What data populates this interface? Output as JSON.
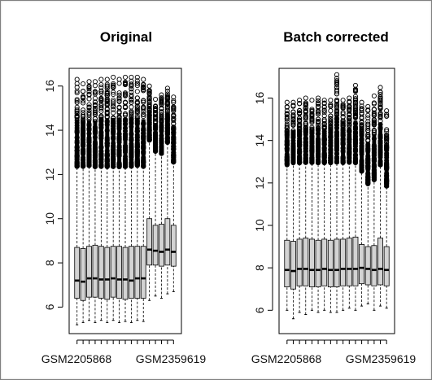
{
  "chart_data": [
    {
      "type": "box",
      "title": "Original",
      "ylim": [
        4.8,
        16.8
      ],
      "yticks": [
        6,
        8,
        10,
        12,
        14,
        16
      ],
      "category_labels": [
        "GSM2205868",
        "GSM2359619"
      ],
      "outlier_style": "open-circle",
      "box_color": "#d3d3d3",
      "groups": [
        {
          "q1": 6.4,
          "median": 7.2,
          "q3": 8.7,
          "whisker_low": 5.2,
          "whisker_high": 12.3,
          "outlier_max": 16.3
        },
        {
          "q1": 6.3,
          "median": 7.15,
          "q3": 8.65,
          "whisker_low": 5.3,
          "whisker_high": 12.3,
          "outlier_max": 16.1
        },
        {
          "q1": 6.45,
          "median": 7.3,
          "q3": 8.75,
          "whisker_low": 5.4,
          "whisker_high": 12.35,
          "outlier_max": 16.2
        },
        {
          "q1": 6.45,
          "median": 7.3,
          "q3": 8.8,
          "whisker_low": 5.3,
          "whisker_high": 12.3,
          "outlier_max": 16.2
        },
        {
          "q1": 6.4,
          "median": 7.25,
          "q3": 8.75,
          "whisker_low": 5.4,
          "whisker_high": 12.3,
          "outlier_max": 16.3
        },
        {
          "q1": 6.35,
          "median": 7.25,
          "q3": 8.7,
          "whisker_low": 5.3,
          "whisker_high": 12.3,
          "outlier_max": 16.3
        },
        {
          "q1": 6.45,
          "median": 7.3,
          "q3": 8.75,
          "whisker_low": 5.4,
          "whisker_high": 12.3,
          "outlier_max": 16.4
        },
        {
          "q1": 6.4,
          "median": 7.25,
          "q3": 8.75,
          "whisker_low": 5.3,
          "whisker_high": 12.3,
          "outlier_max": 16.3
        },
        {
          "q1": 6.35,
          "median": 7.25,
          "q3": 8.7,
          "whisker_low": 5.35,
          "whisker_high": 12.3,
          "outlier_max": 16.4
        },
        {
          "q1": 6.4,
          "median": 7.2,
          "q3": 8.75,
          "whisker_low": 5.3,
          "whisker_high": 12.3,
          "outlier_max": 16.4
        },
        {
          "q1": 6.4,
          "median": 7.3,
          "q3": 8.75,
          "whisker_low": 5.4,
          "whisker_high": 12.35,
          "outlier_max": 16.4
        },
        {
          "q1": 6.4,
          "median": 7.3,
          "q3": 8.75,
          "whisker_low": 5.35,
          "whisker_high": 12.3,
          "outlier_max": 16.3
        },
        {
          "q1": 7.9,
          "median": 8.6,
          "q3": 10.0,
          "whisker_low": 6.3,
          "whisker_high": 13.5,
          "outlier_max": 16.0
        },
        {
          "q1": 7.9,
          "median": 8.55,
          "q3": 9.7,
          "whisker_low": 6.5,
          "whisker_high": 13.0,
          "outlier_max": 15.4
        },
        {
          "q1": 7.85,
          "median": 8.5,
          "q3": 9.75,
          "whisker_low": 6.4,
          "whisker_high": 12.9,
          "outlier_max": 15.6
        },
        {
          "q1": 7.9,
          "median": 8.6,
          "q3": 10.0,
          "whisker_low": 6.6,
          "whisker_high": 13.4,
          "outlier_max": 15.9
        },
        {
          "q1": 7.85,
          "median": 8.5,
          "q3": 9.7,
          "whisker_low": 6.7,
          "whisker_high": 12.5,
          "outlier_max": 15.5
        }
      ]
    },
    {
      "type": "box",
      "title": "Batch corrected",
      "ylim": [
        4.9,
        17.4
      ],
      "yticks": [
        6,
        8,
        10,
        12,
        14,
        16
      ],
      "category_labels": [
        "GSM2205868",
        "GSM2359619"
      ],
      "outlier_style": "open-circle",
      "box_color": "#d3d3d3",
      "groups": [
        {
          "q1": 7.1,
          "median": 7.9,
          "q3": 9.3,
          "whisker_low": 6.0,
          "whisker_high": 12.8,
          "outlier_max": 15.8
        },
        {
          "q1": 7.0,
          "median": 7.85,
          "q3": 9.25,
          "whisker_low": 5.6,
          "whisker_high": 12.9,
          "outlier_max": 15.8
        },
        {
          "q1": 7.15,
          "median": 7.95,
          "q3": 9.35,
          "whisker_low": 5.9,
          "whisker_high": 12.9,
          "outlier_max": 15.9
        },
        {
          "q1": 7.15,
          "median": 7.95,
          "q3": 9.4,
          "whisker_low": 5.8,
          "whisker_high": 12.9,
          "outlier_max": 16.0
        },
        {
          "q1": 7.1,
          "median": 7.9,
          "q3": 9.35,
          "whisker_low": 6.0,
          "whisker_high": 12.9,
          "outlier_max": 15.9
        },
        {
          "q1": 7.1,
          "median": 7.9,
          "q3": 9.3,
          "whisker_low": 5.9,
          "whisker_high": 12.9,
          "outlier_max": 16.0
        },
        {
          "q1": 7.15,
          "median": 7.95,
          "q3": 9.35,
          "whisker_low": 6.0,
          "whisker_high": 12.9,
          "outlier_max": 15.9
        },
        {
          "q1": 7.1,
          "median": 7.9,
          "q3": 9.3,
          "whisker_low": 5.9,
          "whisker_high": 12.9,
          "outlier_max": 15.9
        },
        {
          "q1": 7.1,
          "median": 7.9,
          "q3": 9.35,
          "whisker_low": 5.9,
          "whisker_high": 12.9,
          "outlier_max": 17.1
        },
        {
          "q1": 7.15,
          "median": 7.95,
          "q3": 9.35,
          "whisker_low": 6.0,
          "whisker_high": 12.9,
          "outlier_max": 15.9
        },
        {
          "q1": 7.15,
          "median": 7.95,
          "q3": 9.4,
          "whisker_low": 6.1,
          "whisker_high": 12.9,
          "outlier_max": 16.0
        },
        {
          "q1": 7.15,
          "median": 7.95,
          "q3": 9.45,
          "whisker_low": 6.0,
          "whisker_high": 12.9,
          "outlier_max": 16.6
        },
        {
          "q1": 7.25,
          "median": 8.0,
          "q3": 9.1,
          "whisker_low": 6.2,
          "whisker_high": 12.5,
          "outlier_max": 15.8
        },
        {
          "q1": 7.2,
          "median": 7.95,
          "q3": 9.0,
          "whisker_low": 6.3,
          "whisker_high": 11.9,
          "outlier_max": 15.6
        },
        {
          "q1": 7.15,
          "median": 7.9,
          "q3": 9.05,
          "whisker_low": 6.0,
          "whisker_high": 12.1,
          "outlier_max": 16.1
        },
        {
          "q1": 7.2,
          "median": 7.95,
          "q3": 9.4,
          "whisker_low": 6.2,
          "whisker_high": 12.8,
          "outlier_max": 16.5
        },
        {
          "q1": 7.15,
          "median": 7.9,
          "q3": 9.0,
          "whisker_low": 6.1,
          "whisker_high": 11.8,
          "outlier_max": 15.4
        }
      ]
    }
  ]
}
